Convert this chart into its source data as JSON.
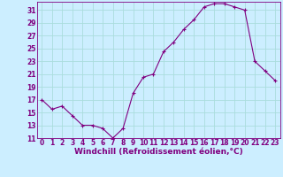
{
  "x": [
    0,
    1,
    2,
    3,
    4,
    5,
    6,
    7,
    8,
    9,
    10,
    11,
    12,
    13,
    14,
    15,
    16,
    17,
    18,
    19,
    20,
    21,
    22,
    23
  ],
  "y": [
    17,
    15.5,
    16,
    14.5,
    13,
    13,
    12.5,
    11,
    12.5,
    18,
    20.5,
    21,
    24.5,
    26,
    28,
    29.5,
    31.5,
    32,
    32,
    31.5,
    31,
    23,
    21.5,
    20
  ],
  "line_color": "#800080",
  "marker": "+",
  "marker_size": 3.5,
  "bg_color": "#cceeff",
  "grid_color": "#aadddd",
  "xlabel": "Windchill (Refroidissement éolien,°C)",
  "xlabel_fontsize": 6.5,
  "tick_fontsize": 5.5,
  "ylim": [
    11,
    32
  ],
  "yticks": [
    11,
    13,
    15,
    17,
    19,
    21,
    23,
    25,
    27,
    29,
    31
  ],
  "xticks": [
    0,
    1,
    2,
    3,
    4,
    5,
    6,
    7,
    8,
    9,
    10,
    11,
    12,
    13,
    14,
    15,
    16,
    17,
    18,
    19,
    20,
    21,
    22,
    23
  ],
  "axes_color": "#800080",
  "spine_color": "#800080"
}
